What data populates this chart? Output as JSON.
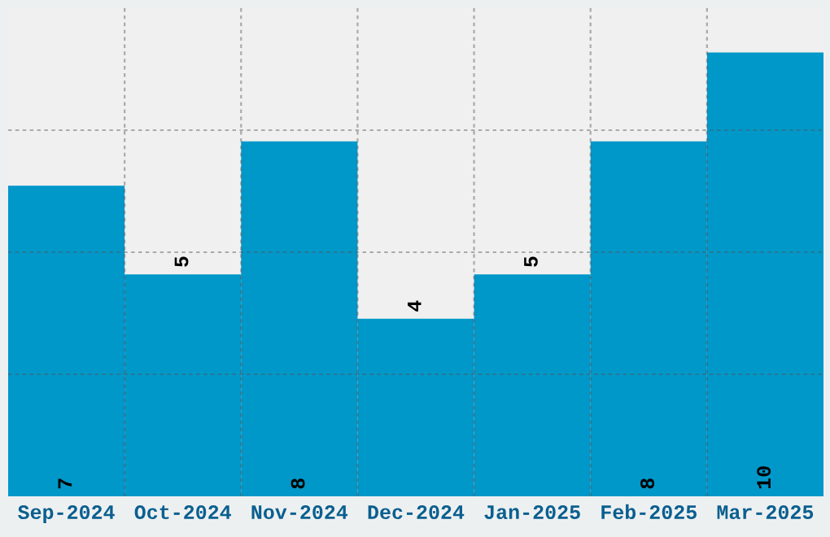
{
  "chart_data": {
    "type": "bar",
    "categories": [
      "Sep-2024",
      "Oct-2024",
      "Nov-2024",
      "Dec-2024",
      "Jan-2025",
      "Feb-2025",
      "Mar-2025"
    ],
    "values": [
      7,
      5,
      8,
      4,
      5,
      8,
      10
    ],
    "color": "#0097c9",
    "ylim": [
      0,
      11
    ],
    "yticks": [
      {
        "value": 2.75,
        "label": null
      },
      {
        "value": 5.5,
        "label": null
      },
      {
        "value": 8.25,
        "label": null
      }
    ],
    "tick_labels": "x",
    "grid": true,
    "data_labels": true
  }
}
